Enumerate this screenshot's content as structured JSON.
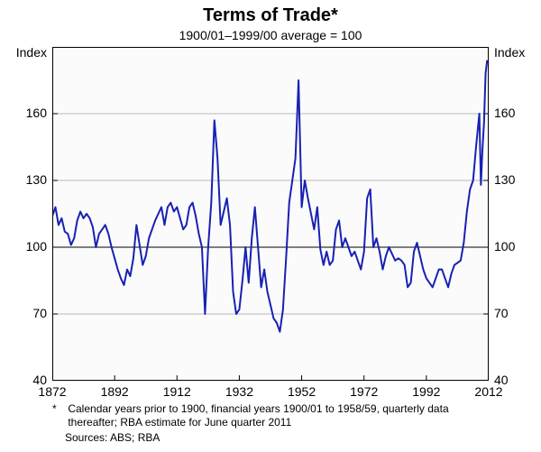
{
  "chart": {
    "type": "line",
    "title": "Terms of Trade*",
    "subtitle": "1900/01–1999/00 average = 100",
    "y_axis_title_left": "Index",
    "y_axis_title_right": "Index",
    "xlim": [
      1872,
      2012
    ],
    "ylim": [
      40,
      190
    ],
    "y_ticks": [
      40,
      70,
      100,
      130,
      160
    ],
    "x_ticks": [
      1872,
      1892,
      1912,
      1932,
      1952,
      1972,
      1992,
      2012
    ],
    "ref_line_y": 100,
    "background_color": "#fbfbfb",
    "border_color": "#000000",
    "grid_color": "#b9b9b9",
    "line_color": "#1821b3",
    "line_width": 2,
    "title_fontsize": 20,
    "subtitle_fontsize": 14,
    "label_fontsize": 14,
    "footnote_fontsize": 12,
    "series": [
      [
        1872,
        114
      ],
      [
        1873,
        118
      ],
      [
        1874,
        110
      ],
      [
        1875,
        113
      ],
      [
        1876,
        107
      ],
      [
        1877,
        106
      ],
      [
        1878,
        101
      ],
      [
        1879,
        104
      ],
      [
        1880,
        112
      ],
      [
        1881,
        116
      ],
      [
        1882,
        113
      ],
      [
        1883,
        115
      ],
      [
        1884,
        113
      ],
      [
        1885,
        109
      ],
      [
        1886,
        100
      ],
      [
        1887,
        106
      ],
      [
        1888,
        108
      ],
      [
        1889,
        110
      ],
      [
        1890,
        106
      ],
      [
        1891,
        100
      ],
      [
        1892,
        95
      ],
      [
        1893,
        90
      ],
      [
        1894,
        86
      ],
      [
        1895,
        83
      ],
      [
        1896,
        90
      ],
      [
        1897,
        87
      ],
      [
        1898,
        95
      ],
      [
        1899,
        110
      ],
      [
        1900,
        101
      ],
      [
        1901,
        92
      ],
      [
        1902,
        96
      ],
      [
        1903,
        104
      ],
      [
        1904,
        108
      ],
      [
        1905,
        112
      ],
      [
        1906,
        115
      ],
      [
        1907,
        118
      ],
      [
        1908,
        110
      ],
      [
        1909,
        118
      ],
      [
        1910,
        120
      ],
      [
        1911,
        116
      ],
      [
        1912,
        118
      ],
      [
        1913,
        113
      ],
      [
        1914,
        108
      ],
      [
        1915,
        110
      ],
      [
        1916,
        118
      ],
      [
        1917,
        120
      ],
      [
        1918,
        114
      ],
      [
        1919,
        106
      ],
      [
        1920,
        100
      ],
      [
        1921,
        70
      ],
      [
        1922,
        100
      ],
      [
        1923,
        120
      ],
      [
        1924,
        157
      ],
      [
        1925,
        140
      ],
      [
        1926,
        110
      ],
      [
        1927,
        116
      ],
      [
        1928,
        122
      ],
      [
        1929,
        110
      ],
      [
        1930,
        80
      ],
      [
        1931,
        70
      ],
      [
        1932,
        72
      ],
      [
        1933,
        85
      ],
      [
        1934,
        100
      ],
      [
        1935,
        84
      ],
      [
        1936,
        104
      ],
      [
        1937,
        118
      ],
      [
        1938,
        100
      ],
      [
        1939,
        82
      ],
      [
        1940,
        90
      ],
      [
        1941,
        80
      ],
      [
        1942,
        74
      ],
      [
        1943,
        68
      ],
      [
        1944,
        66
      ],
      [
        1945,
        62
      ],
      [
        1946,
        72
      ],
      [
        1947,
        95
      ],
      [
        1948,
        120
      ],
      [
        1949,
        130
      ],
      [
        1950,
        140
      ],
      [
        1951,
        175
      ],
      [
        1952,
        118
      ],
      [
        1953,
        130
      ],
      [
        1954,
        122
      ],
      [
        1955,
        115
      ],
      [
        1956,
        108
      ],
      [
        1957,
        118
      ],
      [
        1958,
        99
      ],
      [
        1959,
        92
      ],
      [
        1960,
        98
      ],
      [
        1961,
        92
      ],
      [
        1962,
        94
      ],
      [
        1963,
        108
      ],
      [
        1964,
        112
      ],
      [
        1965,
        100
      ],
      [
        1966,
        104
      ],
      [
        1967,
        100
      ],
      [
        1968,
        96
      ],
      [
        1969,
        98
      ],
      [
        1970,
        94
      ],
      [
        1971,
        90
      ],
      [
        1972,
        98
      ],
      [
        1973,
        122
      ],
      [
        1974,
        126
      ],
      [
        1975,
        100
      ],
      [
        1976,
        104
      ],
      [
        1977,
        98
      ],
      [
        1978,
        90
      ],
      [
        1979,
        96
      ],
      [
        1980,
        100
      ],
      [
        1981,
        97
      ],
      [
        1982,
        94
      ],
      [
        1983,
        95
      ],
      [
        1984,
        94
      ],
      [
        1985,
        92
      ],
      [
        1986,
        82
      ],
      [
        1987,
        84
      ],
      [
        1988,
        98
      ],
      [
        1989,
        102
      ],
      [
        1990,
        96
      ],
      [
        1991,
        90
      ],
      [
        1992,
        86
      ],
      [
        1993,
        84
      ],
      [
        1994,
        82
      ],
      [
        1995,
        86
      ],
      [
        1996,
        90
      ],
      [
        1997,
        90
      ],
      [
        1998,
        86
      ],
      [
        1999,
        82
      ],
      [
        2000,
        88
      ],
      [
        2001,
        92
      ],
      [
        2002,
        93
      ],
      [
        2003,
        94
      ],
      [
        2004,
        102
      ],
      [
        2005,
        116
      ],
      [
        2006,
        126
      ],
      [
        2007,
        130
      ],
      [
        2008,
        146
      ],
      [
        2009,
        160
      ],
      [
        2009.5,
        128
      ],
      [
        2010,
        144
      ],
      [
        2010.5,
        156
      ],
      [
        2011,
        178
      ],
      [
        2011.5,
        184
      ]
    ]
  },
  "footnote": {
    "star": "*",
    "text": "Calendar years prior to 1900, financial years 1900/01 to 1958/59, quarterly data thereafter; RBA estimate for June quarter 2011",
    "sources_label": "Sources:",
    "sources": "ABS; RBA"
  }
}
